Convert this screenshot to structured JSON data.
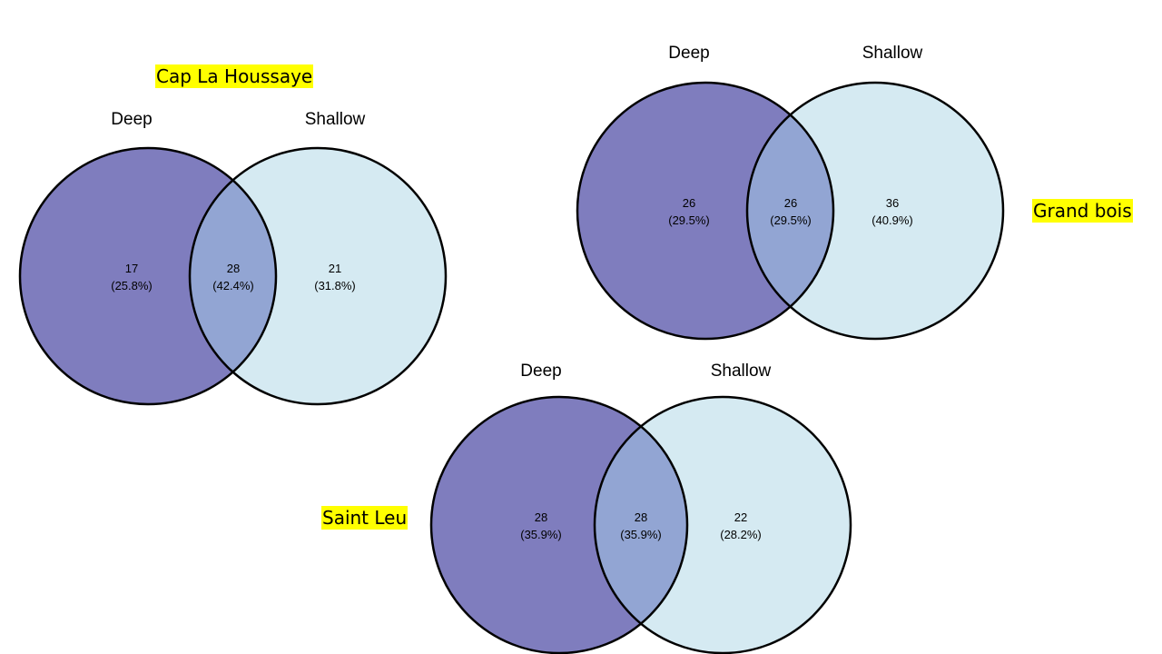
{
  "colors": {
    "deep": "#7f7dbe",
    "shallow": "#d5eaf2",
    "overlap": "#92a5d3",
    "outline": "#000000",
    "highlight": "#ffff00"
  },
  "diagrams": [
    {
      "site": "Cap La Houssaye",
      "set_labels": [
        "Deep",
        "Shallow"
      ],
      "regions": [
        {
          "name": "deep-only",
          "count": "17",
          "percent": "(25.8%)"
        },
        {
          "name": "overlap",
          "count": "28",
          "percent": "(42.4%)"
        },
        {
          "name": "shallow-only",
          "count": "21",
          "percent": "(31.8%)"
        }
      ]
    },
    {
      "site": "Grand bois",
      "set_labels": [
        "Deep",
        "Shallow"
      ],
      "regions": [
        {
          "name": "deep-only",
          "count": "26",
          "percent": "(29.5%)"
        },
        {
          "name": "overlap",
          "count": "26",
          "percent": "(29.5%)"
        },
        {
          "name": "shallow-only",
          "count": "36",
          "percent": "(40.9%)"
        }
      ]
    },
    {
      "site": "Saint Leu",
      "set_labels": [
        "Deep",
        "Shallow"
      ],
      "regions": [
        {
          "name": "deep-only",
          "count": "28",
          "percent": "(35.9%)"
        },
        {
          "name": "overlap",
          "count": "28",
          "percent": "(35.9%)"
        },
        {
          "name": "shallow-only",
          "count": "22",
          "percent": "(28.2%)"
        }
      ]
    }
  ]
}
